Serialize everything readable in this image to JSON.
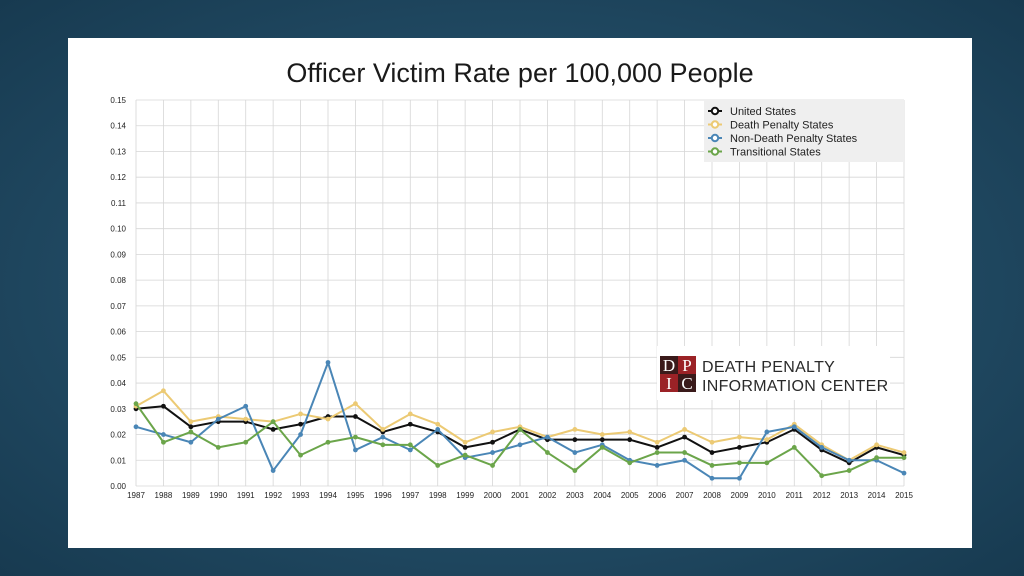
{
  "chart_data": {
    "type": "line",
    "title": "Officer Victim Rate per 100,000 People",
    "xlabel": "",
    "ylabel": "",
    "ylim": [
      0,
      0.15
    ],
    "yticks": [
      "0.00",
      "0.01",
      "0.02",
      "0.03",
      "0.04",
      "0.05",
      "0.06",
      "0.07",
      "0.08",
      "0.09",
      "0.10",
      "0.11",
      "0.12",
      "0.13",
      "0.14",
      "0.15"
    ],
    "x": [
      "1987",
      "1988",
      "1989",
      "1990",
      "1991",
      "1992",
      "1993",
      "1994",
      "1995",
      "1996",
      "1997",
      "1998",
      "1999",
      "2000",
      "2001",
      "2002",
      "2003",
      "2004",
      "2005",
      "2006",
      "2007",
      "2008",
      "2009",
      "2010",
      "2011",
      "2012",
      "2013",
      "2014",
      "2015"
    ],
    "grid": true,
    "legend_position": "top-right",
    "series": [
      {
        "name": "United States",
        "color": "#111111",
        "values": [
          0.03,
          0.031,
          0.023,
          0.025,
          0.025,
          0.022,
          0.024,
          0.027,
          0.027,
          0.021,
          0.024,
          0.021,
          0.015,
          0.017,
          0.022,
          0.018,
          0.018,
          0.018,
          0.018,
          0.015,
          0.019,
          0.013,
          0.015,
          0.017,
          0.022,
          0.014,
          0.009,
          0.015,
          0.012
        ]
      },
      {
        "name": "Death Penalty States",
        "color": "#ecca74",
        "values": [
          0.031,
          0.037,
          0.025,
          0.027,
          0.026,
          0.025,
          0.028,
          0.026,
          0.032,
          0.022,
          0.028,
          0.024,
          0.017,
          0.021,
          0.023,
          0.019,
          0.022,
          0.02,
          0.021,
          0.017,
          0.022,
          0.017,
          0.019,
          0.018,
          0.024,
          0.016,
          0.01,
          0.016,
          0.013
        ]
      },
      {
        "name": "Non-Death Penalty States",
        "color": "#4a86b6",
        "values": [
          0.023,
          0.02,
          0.017,
          0.026,
          0.031,
          0.006,
          0.02,
          0.048,
          0.014,
          0.019,
          0.014,
          0.022,
          0.011,
          0.013,
          0.016,
          0.019,
          0.013,
          0.016,
          0.01,
          0.008,
          0.01,
          0.003,
          0.003,
          0.021,
          0.023,
          0.015,
          0.01,
          0.01,
          0.005
        ]
      },
      {
        "name": "Transitional States",
        "color": "#6ba54a",
        "values": [
          0.032,
          0.017,
          0.021,
          0.015,
          0.017,
          0.025,
          0.012,
          0.017,
          0.019,
          0.016,
          0.016,
          0.008,
          0.012,
          0.008,
          0.022,
          0.013,
          0.006,
          0.015,
          0.009,
          0.013,
          0.013,
          0.008,
          0.009,
          0.009,
          0.015,
          0.004,
          0.006,
          0.011,
          0.011
        ]
      }
    ]
  },
  "logo": {
    "letters": [
      "D",
      "P",
      "I",
      "C"
    ],
    "line1": "DEATH PENALTY",
    "line2": "INFORMATION CENTER",
    "colors": {
      "dark": "#3a1a1a",
      "red": "#9b2226"
    }
  }
}
